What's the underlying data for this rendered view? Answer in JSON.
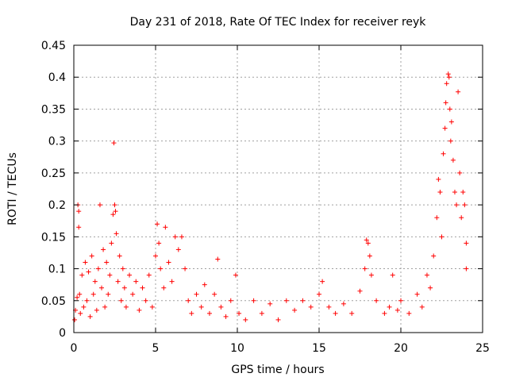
{
  "chart_data": {
    "type": "scatter",
    "title": "Day 231 of 2018, Rate Of TEC Index for receiver reyk",
    "xlabel": "GPS time / hours",
    "ylabel": "ROTI / TECUs",
    "xlim": [
      0,
      25
    ],
    "ylim": [
      0,
      0.45
    ],
    "xticks": [
      0,
      5,
      10,
      15,
      20,
      25
    ],
    "yticks": [
      0,
      0.05,
      0.1,
      0.15,
      0.2,
      0.25,
      0.3,
      0.35,
      0.4,
      0.45
    ],
    "grid": true,
    "marker": "+",
    "color": "#ff0000",
    "points": [
      [
        0.05,
        0.02
      ],
      [
        0.1,
        0.035
      ],
      [
        0.2,
        0.055
      ],
      [
        0.25,
        0.2
      ],
      [
        0.3,
        0.19
      ],
      [
        0.3,
        0.165
      ],
      [
        0.35,
        0.06
      ],
      [
        0.4,
        0.03
      ],
      [
        0.5,
        0.09
      ],
      [
        0.6,
        0.04
      ],
      [
        0.7,
        0.11
      ],
      [
        0.8,
        0.05
      ],
      [
        0.9,
        0.095
      ],
      [
        1.0,
        0.025
      ],
      [
        1.1,
        0.12
      ],
      [
        1.2,
        0.06
      ],
      [
        1.3,
        0.08
      ],
      [
        1.4,
        0.035
      ],
      [
        1.5,
        0.1
      ],
      [
        1.6,
        0.2
      ],
      [
        1.7,
        0.07
      ],
      [
        1.8,
        0.13
      ],
      [
        1.9,
        0.04
      ],
      [
        2.0,
        0.11
      ],
      [
        2.1,
        0.06
      ],
      [
        2.2,
        0.09
      ],
      [
        2.3,
        0.14
      ],
      [
        2.4,
        0.185
      ],
      [
        2.45,
        0.297
      ],
      [
        2.5,
        0.2
      ],
      [
        2.55,
        0.19
      ],
      [
        2.6,
        0.155
      ],
      [
        2.7,
        0.08
      ],
      [
        2.8,
        0.12
      ],
      [
        2.9,
        0.05
      ],
      [
        3.0,
        0.1
      ],
      [
        3.1,
        0.07
      ],
      [
        3.2,
        0.04
      ],
      [
        3.4,
        0.09
      ],
      [
        3.6,
        0.06
      ],
      [
        3.8,
        0.08
      ],
      [
        4.0,
        0.035
      ],
      [
        4.2,
        0.07
      ],
      [
        4.4,
        0.05
      ],
      [
        4.6,
        0.09
      ],
      [
        4.8,
        0.04
      ],
      [
        5.0,
        0.12
      ],
      [
        5.1,
        0.17
      ],
      [
        5.2,
        0.14
      ],
      [
        5.3,
        0.1
      ],
      [
        5.5,
        0.07
      ],
      [
        5.6,
        0.165
      ],
      [
        5.8,
        0.11
      ],
      [
        6.0,
        0.08
      ],
      [
        6.2,
        0.15
      ],
      [
        6.4,
        0.13
      ],
      [
        6.6,
        0.15
      ],
      [
        6.8,
        0.1
      ],
      [
        7.0,
        0.05
      ],
      [
        7.2,
        0.03
      ],
      [
        7.5,
        0.06
      ],
      [
        7.8,
        0.04
      ],
      [
        8.0,
        0.075
      ],
      [
        8.3,
        0.03
      ],
      [
        8.6,
        0.06
      ],
      [
        8.8,
        0.115
      ],
      [
        9.0,
        0.04
      ],
      [
        9.3,
        0.025
      ],
      [
        9.6,
        0.05
      ],
      [
        9.9,
        0.09
      ],
      [
        10.1,
        0.03
      ],
      [
        10.5,
        0.02
      ],
      [
        11.0,
        0.05
      ],
      [
        11.5,
        0.03
      ],
      [
        12.0,
        0.045
      ],
      [
        12.5,
        0.02
      ],
      [
        13.0,
        0.05
      ],
      [
        13.5,
        0.035
      ],
      [
        14.0,
        0.05
      ],
      [
        14.5,
        0.04
      ],
      [
        15.0,
        0.06
      ],
      [
        15.2,
        0.08
      ],
      [
        15.6,
        0.04
      ],
      [
        16.0,
        0.03
      ],
      [
        16.5,
        0.045
      ],
      [
        17.0,
        0.03
      ],
      [
        17.5,
        0.065
      ],
      [
        17.8,
        0.1
      ],
      [
        17.9,
        0.145
      ],
      [
        18.0,
        0.14
      ],
      [
        18.1,
        0.12
      ],
      [
        18.2,
        0.09
      ],
      [
        18.5,
        0.05
      ],
      [
        19.0,
        0.03
      ],
      [
        19.3,
        0.04
      ],
      [
        19.5,
        0.09
      ],
      [
        19.8,
        0.035
      ],
      [
        20.0,
        0.05
      ],
      [
        20.5,
        0.03
      ],
      [
        21.0,
        0.06
      ],
      [
        21.3,
        0.04
      ],
      [
        21.6,
        0.09
      ],
      [
        21.8,
        0.07
      ],
      [
        22.0,
        0.12
      ],
      [
        22.2,
        0.18
      ],
      [
        22.3,
        0.24
      ],
      [
        22.4,
        0.22
      ],
      [
        22.5,
        0.15
      ],
      [
        22.6,
        0.28
      ],
      [
        22.7,
        0.32
      ],
      [
        22.75,
        0.36
      ],
      [
        22.8,
        0.39
      ],
      [
        22.9,
        0.405
      ],
      [
        22.95,
        0.4
      ],
      [
        23.0,
        0.35
      ],
      [
        23.05,
        0.3
      ],
      [
        23.1,
        0.33
      ],
      [
        23.2,
        0.27
      ],
      [
        23.3,
        0.22
      ],
      [
        23.4,
        0.2
      ],
      [
        23.5,
        0.377
      ],
      [
        23.6,
        0.25
      ],
      [
        23.7,
        0.18
      ],
      [
        23.8,
        0.22
      ],
      [
        23.9,
        0.2
      ],
      [
        24.0,
        0.14
      ],
      [
        24.0,
        0.1
      ]
    ]
  }
}
